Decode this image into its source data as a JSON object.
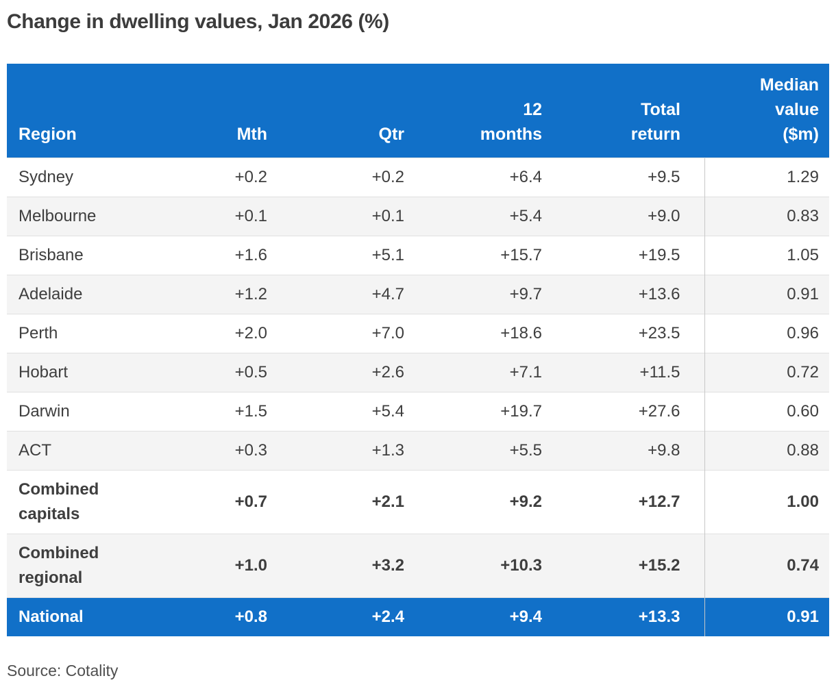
{
  "title": "Change in dwelling values, Jan 2026 (%)",
  "source": "Source: Cotality",
  "colors": {
    "header_blue": "#1170C8",
    "row_stripe": "#f4f4f4",
    "row_border": "#e0e0e0",
    "column_divider": "#c8c8c8",
    "body_text": "#3e3e3e",
    "header_text": "#ffffff"
  },
  "table": {
    "columns": [
      {
        "key": "region",
        "label": "Region",
        "align": "left"
      },
      {
        "key": "mth",
        "label": "Mth",
        "align": "right"
      },
      {
        "key": "qtr",
        "label": "Qtr",
        "align": "right"
      },
      {
        "key": "m12",
        "label": "12 months",
        "align": "right"
      },
      {
        "key": "total",
        "label": "Total return",
        "align": "right"
      },
      {
        "key": "median",
        "label": "Median value ($m)",
        "align": "right"
      }
    ],
    "rows": [
      {
        "region": "Sydney",
        "mth": "+0.2",
        "qtr": "+0.2",
        "m12": "+6.4",
        "total": "+9.5",
        "median": "1.29",
        "style": "normal"
      },
      {
        "region": "Melbourne",
        "mth": "+0.1",
        "qtr": "+0.1",
        "m12": "+5.4",
        "total": "+9.0",
        "median": "0.83",
        "style": "normal"
      },
      {
        "region": "Brisbane",
        "mth": "+1.6",
        "qtr": "+5.1",
        "m12": "+15.7",
        "total": "+19.5",
        "median": "1.05",
        "style": "normal"
      },
      {
        "region": "Adelaide",
        "mth": "+1.2",
        "qtr": "+4.7",
        "m12": "+9.7",
        "total": "+13.6",
        "median": "0.91",
        "style": "normal"
      },
      {
        "region": "Perth",
        "mth": "+2.0",
        "qtr": "+7.0",
        "m12": "+18.6",
        "total": "+23.5",
        "median": "0.96",
        "style": "normal"
      },
      {
        "region": "Hobart",
        "mth": "+0.5",
        "qtr": "+2.6",
        "m12": "+7.1",
        "total": "+11.5",
        "median": "0.72",
        "style": "normal"
      },
      {
        "region": "Darwin",
        "mth": "+1.5",
        "qtr": "+5.4",
        "m12": "+19.7",
        "total": "+27.6",
        "median": "0.60",
        "style": "normal"
      },
      {
        "region": "ACT",
        "mth": "+0.3",
        "qtr": "+1.3",
        "m12": "+5.5",
        "total": "+9.8",
        "median": "0.88",
        "style": "normal"
      },
      {
        "region": "Combined capitals",
        "mth": "+0.7",
        "qtr": "+2.1",
        "m12": "+9.2",
        "total": "+12.7",
        "median": "1.00",
        "style": "bold"
      },
      {
        "region": "Combined regional",
        "mth": "+1.0",
        "qtr": "+3.2",
        "m12": "+10.3",
        "total": "+15.2",
        "median": "0.74",
        "style": "bold"
      },
      {
        "region": "National",
        "mth": "+0.8",
        "qtr": "+2.4",
        "m12": "+9.4",
        "total": "+13.3",
        "median": "0.91",
        "style": "national"
      }
    ]
  },
  "chart_data": {
    "type": "table",
    "title": "Change in dwelling values, Jan 2026 (%)",
    "columns": [
      "Region",
      "Mth",
      "Qtr",
      "12 months",
      "Total return",
      "Median value ($m)"
    ],
    "rows": [
      [
        "Sydney",
        0.2,
        0.2,
        6.4,
        9.5,
        1.29
      ],
      [
        "Melbourne",
        0.1,
        0.1,
        5.4,
        9.0,
        0.83
      ],
      [
        "Brisbane",
        1.6,
        5.1,
        15.7,
        19.5,
        1.05
      ],
      [
        "Adelaide",
        1.2,
        4.7,
        9.7,
        13.6,
        0.91
      ],
      [
        "Perth",
        2.0,
        7.0,
        18.6,
        23.5,
        0.96
      ],
      [
        "Hobart",
        0.5,
        2.6,
        7.1,
        11.5,
        0.72
      ],
      [
        "Darwin",
        1.5,
        5.4,
        19.7,
        27.6,
        0.6
      ],
      [
        "ACT",
        0.3,
        1.3,
        5.5,
        9.8,
        0.88
      ],
      [
        "Combined capitals",
        0.7,
        2.1,
        9.2,
        12.7,
        1.0
      ],
      [
        "Combined regional",
        1.0,
        3.2,
        10.3,
        15.2,
        0.74
      ],
      [
        "National",
        0.8,
        2.4,
        9.4,
        13.3,
        0.91
      ]
    ],
    "value_format": "percentage change values shown with leading + sign; median in $m with 2 decimals",
    "source": "Source: Cotality"
  }
}
